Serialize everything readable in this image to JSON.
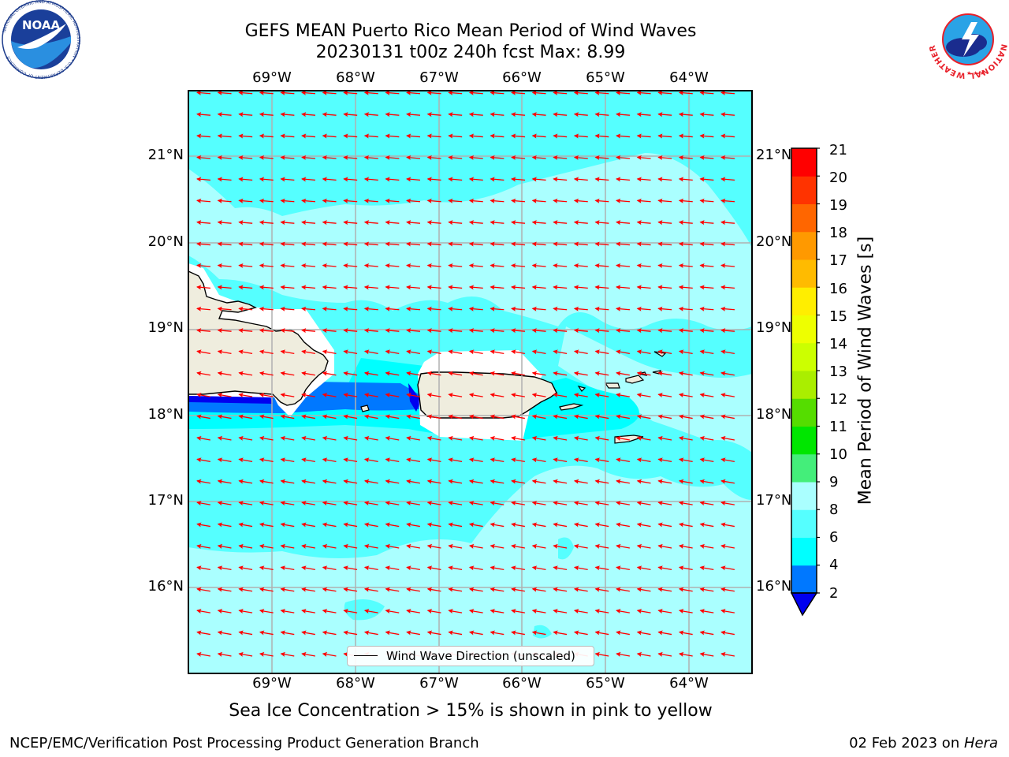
{
  "title": {
    "line1": "GEFS MEAN Puerto Rico Mean Period of Wind Waves",
    "line2": "20230131 t00z 240h fcst   Max: 8.99"
  },
  "map": {
    "lon_ticks": [
      "69°W",
      "68°W",
      "67°W",
      "66°W",
      "65°W",
      "64°W"
    ],
    "lat_ticks": [
      "21°N",
      "20°N",
      "19°N",
      "18°N",
      "17°N",
      "16°N"
    ],
    "lon_range": [
      -70.0,
      -63.25
    ],
    "lat_range": [
      15.0,
      21.75
    ],
    "land_color": "#efedde",
    "coastline_color": "#000000",
    "arrow_color": "#ff0000",
    "arrow_direction": "toward west-southwest",
    "legend": "Wind Wave Direction (unscaled)"
  },
  "colorbar": {
    "title": "Mean Period of Wind Waves [s]",
    "levels": [
      "2",
      "4",
      "6",
      "8",
      "9",
      "10",
      "11",
      "12",
      "13",
      "14",
      "15",
      "16",
      "17",
      "18",
      "19",
      "20",
      "21"
    ],
    "colors": [
      "#0000f0",
      "#0078ff",
      "#00ffff",
      "#55ffff",
      "#aaffff",
      "#44ee7a",
      "#00e600",
      "#55dd00",
      "#aaee00",
      "#ccff00",
      "#eeff00",
      "#ffee00",
      "#ffbb00",
      "#ff9900",
      "#ff6600",
      "#ff3300",
      "#ff0000"
    ],
    "extend_color": "#0000f0"
  },
  "subtitle": "Sea Ice Concentration > 15% is shown in pink to yellow",
  "footer": {
    "left": "NCEP/EMC/Verification Post Processing Product Generation Branch",
    "date": "02 Feb 2023 on ",
    "machine": "Hera"
  },
  "logos": {
    "noaa_text": "NOAA",
    "noaa_ring": "NATIONAL OCEANIC AND ATMOSPHERIC ADMINISTRATION • U.S. DEPARTMENT OF COMMERCE",
    "nws_ring": "NATIONAL WEATHER SERVICE"
  }
}
